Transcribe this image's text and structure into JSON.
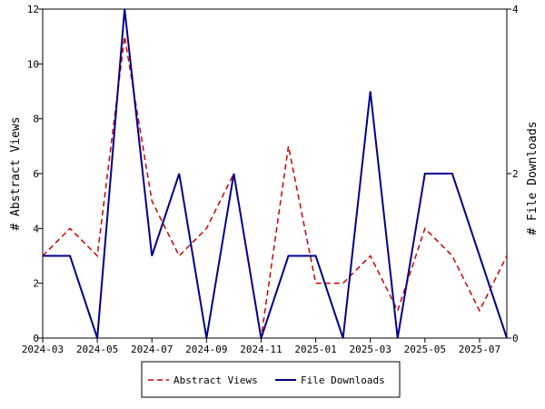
{
  "chart_data": {
    "type": "line",
    "x": [
      "2024-03",
      "2024-04",
      "2024-05",
      "2024-06",
      "2024-07",
      "2024-08",
      "2024-09",
      "2024-10",
      "2024-11",
      "2024-12",
      "2025-01",
      "2025-02",
      "2025-03",
      "2025-04",
      "2025-05",
      "2025-06",
      "2025-07",
      "2025-08"
    ],
    "x_tick_labels": [
      "2024-03",
      "2024-05",
      "2024-07",
      "2024-09",
      "2024-11",
      "2025-01",
      "2025-03",
      "2025-05",
      "2025-07"
    ],
    "y_left": {
      "label": "# Abstract Views",
      "range": [
        0,
        12
      ],
      "ticks": [
        "0",
        "2",
        "4",
        "6",
        "8",
        "10",
        "12"
      ]
    },
    "y_right": {
      "label": "# File Downloads",
      "range": [
        0,
        4
      ],
      "ticks": [
        "0",
        "2",
        "4"
      ]
    },
    "series": [
      {
        "name": "Abstract Views",
        "axis": "left",
        "color": "#cc0000",
        "dash": "dashed",
        "values": [
          3,
          4,
          3,
          11,
          5,
          3,
          4,
          6,
          0,
          7,
          2,
          2,
          3,
          1,
          4,
          3,
          1,
          3
        ]
      },
      {
        "name": "File Downloads",
        "axis": "right",
        "color": "#00008b",
        "dash": "solid",
        "values": [
          1,
          1,
          0,
          4,
          1,
          2,
          0,
          2,
          0,
          1,
          1,
          0,
          3,
          0,
          2,
          2,
          1,
          0
        ]
      }
    ],
    "legend_position": "bottom-center",
    "grid": false
  }
}
